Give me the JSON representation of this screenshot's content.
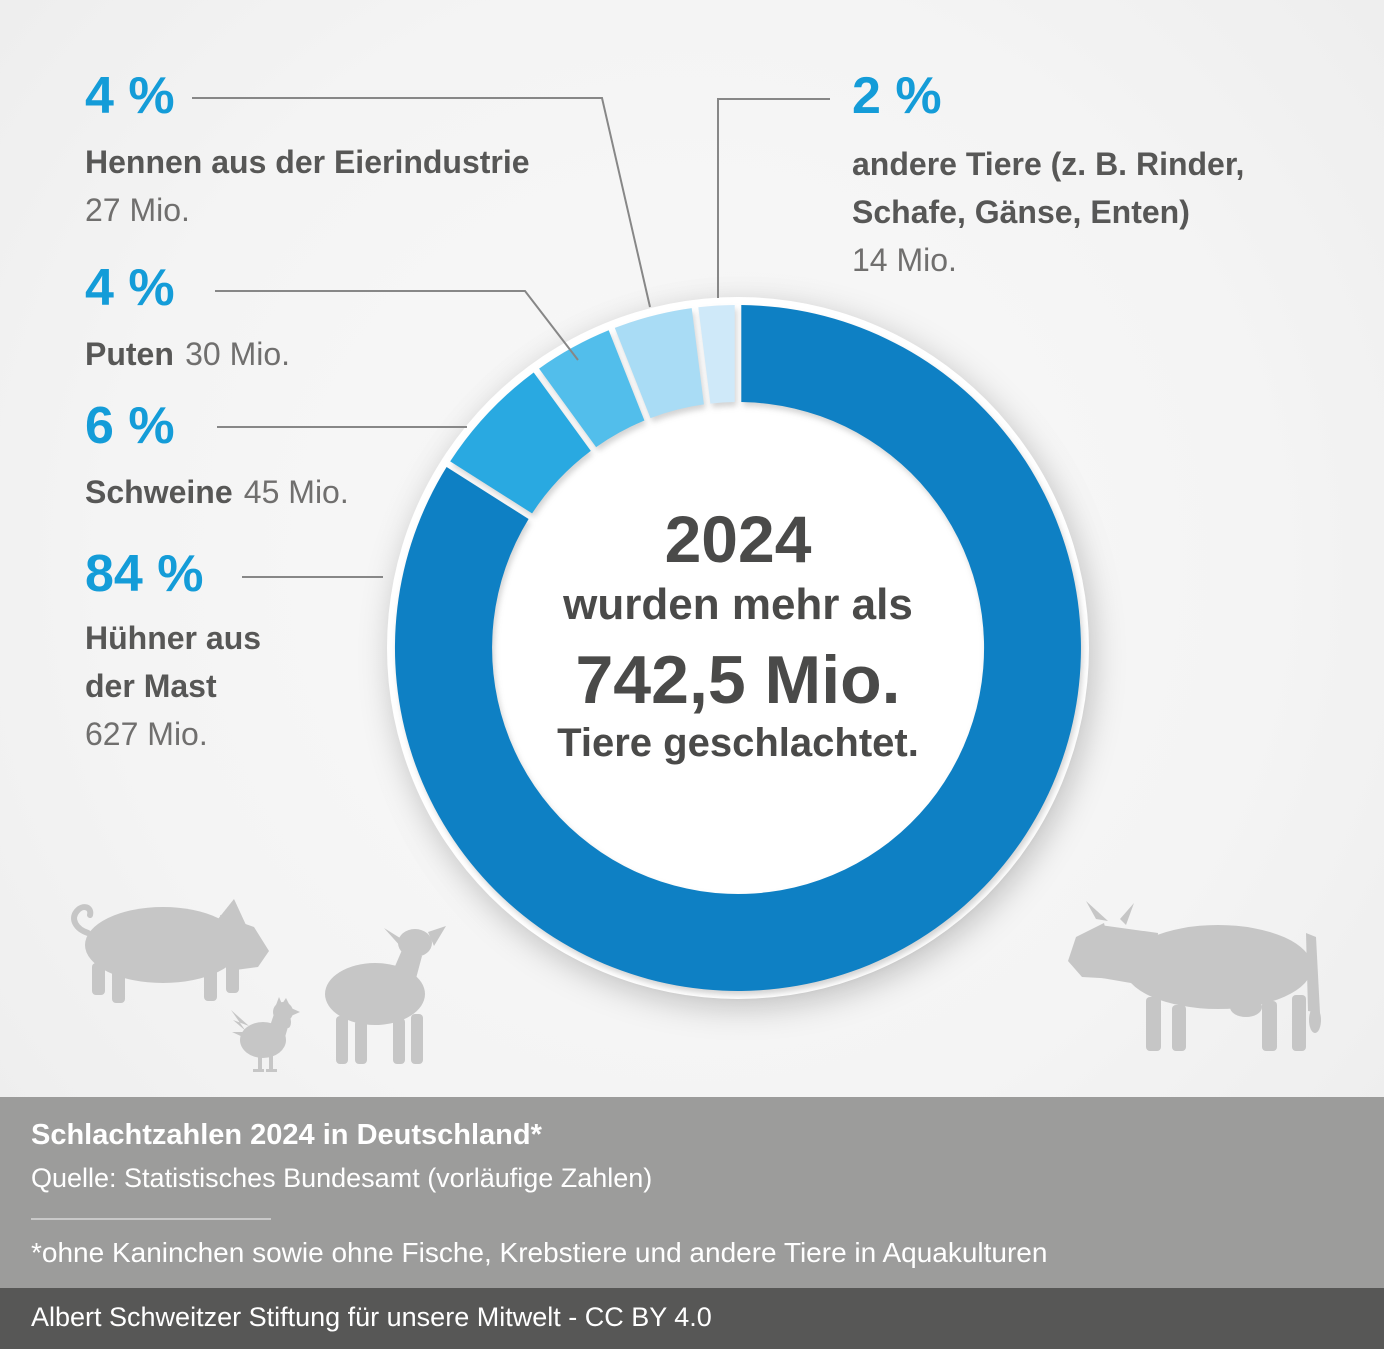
{
  "chart_data": {
    "type": "donut",
    "title": "Schlachtzahlen 2024 in Deutschland*",
    "center": {
      "line1": "2024",
      "line2": "wurden mehr als",
      "line3": "742,5 Mio.",
      "line4": "Tiere geschlachtet."
    },
    "unit": "Mio. Tiere",
    "total_mio": 742.5,
    "legend_position": "callouts",
    "segments": [
      {
        "id": "huehner-mast",
        "percent": 84,
        "percent_label": "84 %",
        "name_line1": "Hühner aus",
        "name_line2": "der Mast",
        "value_mio": 627,
        "count_label": "627 Mio.",
        "color": "#0E80C4"
      },
      {
        "id": "schweine",
        "percent": 6,
        "percent_label": "6 %",
        "name": "Schweine",
        "value_mio": 45,
        "count_label": "45 Mio.",
        "color": "#29A9E1"
      },
      {
        "id": "puten",
        "percent": 4,
        "percent_label": "4 %",
        "name": "Puten",
        "value_mio": 30,
        "count_label": "30 Mio.",
        "color": "#52BEEB"
      },
      {
        "id": "hennen-eierindustrie",
        "percent": 4,
        "percent_label": "4 %",
        "name": "Hennen aus der Eierindustrie",
        "value_mio": 27,
        "count_label": "27 Mio.",
        "color": "#A9DCF5"
      },
      {
        "id": "andere-tiere",
        "percent": 2,
        "percent_label": "2 %",
        "name_line1": "andere Tiere (z. B. Rinder,",
        "name_line2": "Schafe, Gänse, Enten)",
        "value_mio": 14,
        "count_label": "14 Mio.",
        "color": "#CFE9F9"
      }
    ]
  },
  "footer": {
    "title": "Schlachtzahlen 2024 in Deutschland*",
    "source": "Quelle: Statistisches Bundesamt (vorläufige Zahlen)",
    "footnote": "*ohne Kaninchen sowie ohne Fische, Krebstiere und andere Tiere in Aquakulturen",
    "credit": "Albert Schweitzer Stiftung für unsere Mitwelt - CC BY 4.0"
  },
  "colors": {
    "accent_blue": "#149CD8",
    "center_text": "#4A4A49",
    "label_bold": "#575756",
    "label_light": "#706F6E",
    "callout_line": "#878787",
    "footer_bar": "#9C9C9B",
    "credit_bar": "#575756",
    "silhouette": "#C6C6C6"
  },
  "decorative_icons": [
    "pig",
    "chicken",
    "lamb",
    "cow"
  ]
}
